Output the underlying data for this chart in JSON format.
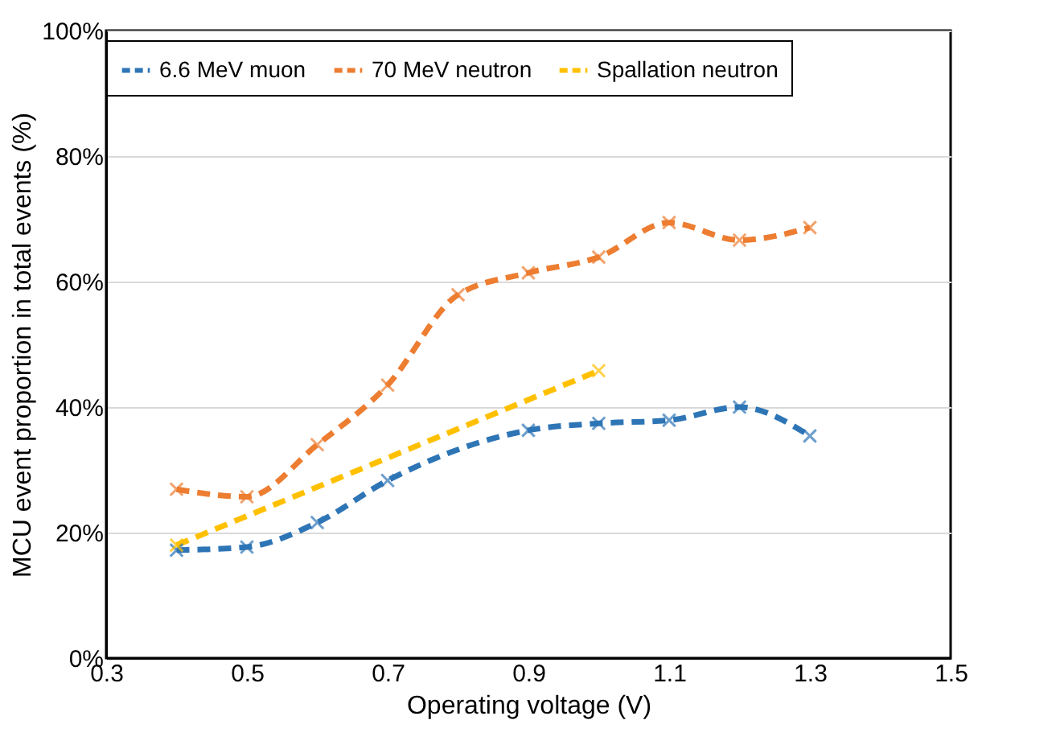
{
  "chart_data": {
    "type": "line",
    "xlabel": "Operating voltage (V)",
    "ylabel": "MCU event proportion in total events (%)",
    "xlim": [
      0.3,
      1.5
    ],
    "xticks": [
      0.3,
      0.5,
      0.7,
      0.9,
      1.1,
      1.3,
      1.5
    ],
    "ylim": [
      0,
      100
    ],
    "yticks": [
      {
        "value": 0,
        "label": "0%"
      },
      {
        "value": 20,
        "label": "20%"
      },
      {
        "value": 40,
        "label": "40%"
      },
      {
        "value": 60,
        "label": "60%"
      },
      {
        "value": 80,
        "label": "80%"
      },
      {
        "value": 100,
        "label": "100%"
      }
    ],
    "grid": "y",
    "legend": "top",
    "marker": "cross",
    "line_style": "dashed",
    "series": [
      {
        "name": "6.6 MeV muon",
        "color": "#2e75b6",
        "x": [
          0.4,
          0.5,
          0.6,
          0.7,
          0.9,
          1.0,
          1.1,
          1.2,
          1.3
        ],
        "values": [
          17.2,
          17.7,
          21.6,
          28.3,
          36.3,
          37.4,
          37.9,
          40.0,
          35.4
        ]
      },
      {
        "name": "70 MeV neutron",
        "color": "#ed7d31",
        "x": [
          0.4,
          0.5,
          0.6,
          0.7,
          0.8,
          0.9,
          1.0,
          1.1,
          1.2,
          1.3
        ],
        "values": [
          26.9,
          25.7,
          34.0,
          43.5,
          57.9,
          61.4,
          63.9,
          69.4,
          66.6,
          68.6
        ]
      },
      {
        "name": "Spallation neutron",
        "color": "#ffc000",
        "x": [
          0.4,
          1.0
        ],
        "values": [
          18.0,
          45.8
        ]
      }
    ]
  }
}
